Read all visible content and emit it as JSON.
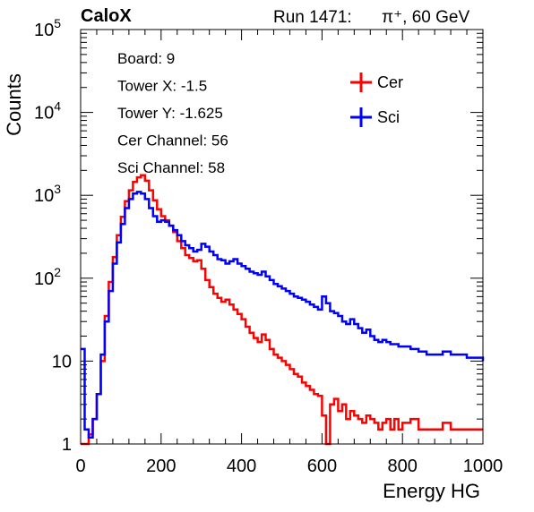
{
  "chart_data": {
    "type": "line",
    "brand": "CaloX",
    "run_text": "Run 1471:",
    "particle_text": "π⁺, 60 GeV",
    "xlabel": "Energy HG",
    "ylabel": "Counts",
    "xlim": [
      0,
      1000
    ],
    "ylim": [
      1,
      100000
    ],
    "yscale": "log",
    "x_ticks": [
      "0",
      "200",
      "400",
      "600",
      "800",
      "1000"
    ],
    "y_ticks": [
      {
        "base": "1",
        "exp": ""
      },
      {
        "base": "10",
        "exp": ""
      },
      {
        "base": "10",
        "exp": "2"
      },
      {
        "base": "10",
        "exp": "3"
      },
      {
        "base": "10",
        "exp": "4"
      },
      {
        "base": "10",
        "exp": "5"
      }
    ],
    "info": [
      "Board: 9",
      "Tower X: -1.5",
      "Tower Y: -1.625",
      "Cer Channel: 56",
      "Sci Channel: 58"
    ],
    "legend_position": "top-right",
    "series": [
      {
        "name": "Cer",
        "color": "#ff0000",
        "x": [
          0,
          10,
          20,
          30,
          40,
          50,
          60,
          70,
          80,
          90,
          100,
          110,
          120,
          130,
          140,
          150,
          160,
          170,
          180,
          190,
          200,
          210,
          220,
          230,
          240,
          250,
          260,
          270,
          280,
          290,
          300,
          310,
          320,
          330,
          340,
          350,
          360,
          370,
          380,
          390,
          400,
          410,
          420,
          430,
          440,
          450,
          460,
          470,
          480,
          490,
          500,
          510,
          520,
          530,
          540,
          550,
          560,
          570,
          580,
          590,
          600,
          610,
          620,
          630,
          640,
          650,
          660,
          670,
          680,
          690,
          700,
          710,
          720,
          730,
          740,
          750,
          760,
          770,
          780,
          790,
          800,
          820,
          840,
          860,
          880,
          900,
          920,
          940,
          960,
          980,
          1000
        ],
        "y": [
          1,
          1,
          1.3,
          2,
          4,
          10,
          35,
          90,
          180,
          330,
          550,
          850,
          1150,
          1450,
          1650,
          1750,
          1500,
          1150,
          870,
          680,
          560,
          500,
          430,
          360,
          280,
          230,
          190,
          175,
          160,
          165,
          130,
          95,
          78,
          65,
          58,
          52,
          55,
          48,
          42,
          37,
          32,
          26,
          22,
          19,
          17,
          21,
          18,
          14,
          12,
          11,
          10,
          9,
          8,
          7,
          6.5,
          5.5,
          5,
          4.5,
          4,
          3.8,
          2.2,
          1,
          3,
          3.5,
          2.5,
          3,
          2,
          2.5,
          2.2,
          2,
          1.8,
          2.2,
          2,
          1.8,
          1.5,
          1.8,
          2,
          1.5,
          2,
          1.5,
          1.8,
          2,
          1.5,
          1.5,
          1.5,
          1.8,
          1.5,
          1.5,
          1.5,
          1.5,
          1.5
        ]
      },
      {
        "name": "Sci",
        "color": "#0000ff",
        "x": [
          0,
          10,
          20,
          30,
          40,
          50,
          60,
          70,
          80,
          90,
          100,
          110,
          120,
          130,
          140,
          150,
          160,
          170,
          180,
          190,
          200,
          210,
          220,
          230,
          240,
          250,
          260,
          270,
          280,
          290,
          300,
          310,
          320,
          330,
          340,
          350,
          360,
          370,
          380,
          390,
          400,
          410,
          420,
          430,
          440,
          450,
          460,
          470,
          480,
          490,
          500,
          510,
          520,
          530,
          540,
          550,
          560,
          570,
          580,
          590,
          600,
          610,
          620,
          630,
          640,
          650,
          660,
          670,
          680,
          690,
          700,
          710,
          720,
          730,
          740,
          750,
          760,
          770,
          780,
          790,
          800,
          820,
          840,
          860,
          880,
          900,
          920,
          940,
          960,
          980,
          1000
        ],
        "y": [
          14,
          1.5,
          1.2,
          2,
          4,
          12,
          30,
          70,
          150,
          270,
          450,
          700,
          900,
          1050,
          1100,
          1050,
          900,
          700,
          560,
          480,
          500,
          480,
          430,
          380,
          330,
          280,
          250,
          230,
          210,
          220,
          260,
          240,
          210,
          190,
          170,
          165,
          150,
          160,
          170,
          150,
          140,
          130,
          120,
          115,
          110,
          120,
          105,
          95,
          85,
          80,
          75,
          70,
          65,
          60,
          58,
          55,
          52,
          48,
          45,
          42,
          60,
          50,
          40,
          38,
          35,
          30,
          28,
          32,
          28,
          25,
          22,
          24,
          20,
          18,
          17,
          18,
          17,
          16,
          16,
          15,
          15,
          14,
          13,
          12,
          12,
          13,
          12,
          12,
          11,
          11,
          10
        ]
      }
    ]
  }
}
